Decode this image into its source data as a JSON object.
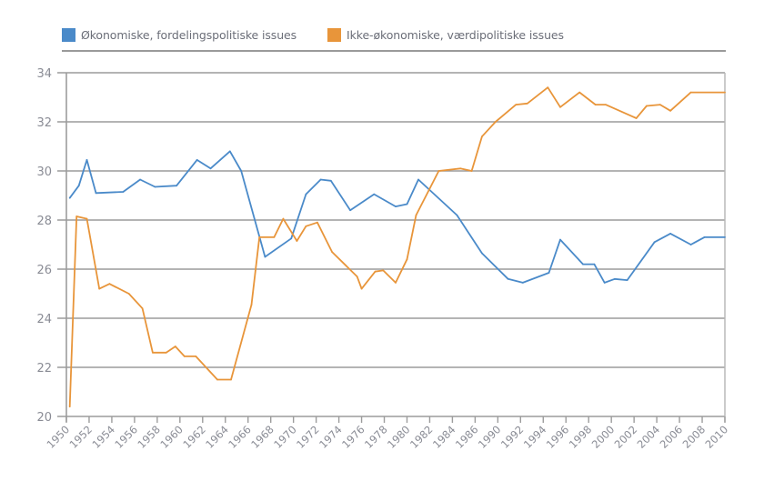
{
  "chart_data": {
    "type": "line",
    "title": "",
    "xlabel": "",
    "ylabel": "",
    "ylim": [
      20,
      34
    ],
    "yticks": [
      "20",
      "22",
      "24",
      "26",
      "28",
      "30",
      "32",
      "34"
    ],
    "ytick_values": [
      20,
      22,
      24,
      26,
      28,
      30,
      32,
      34
    ],
    "xtick_labels": [
      "1950",
      "1952",
      "1954",
      "1956",
      "1958",
      "1960",
      "1962",
      "1964",
      "1966",
      "1968",
      "1970",
      "1972",
      "1974",
      "1976",
      "1978",
      "1980",
      "1982",
      "1984",
      "1986",
      "1990",
      "1992",
      "1994",
      "1996",
      "1998",
      "2000",
      "2002",
      "2004",
      "2006",
      "2008",
      "2010"
    ],
    "grid": true,
    "legend_position": "top",
    "series": [
      {
        "name": "Økonomiske, fordelingspolitiske issues",
        "color": "#4a8ac9",
        "points": [
          [
            1950.3,
            28.9
          ],
          [
            1951.1,
            29.4
          ],
          [
            1951.8,
            30.45
          ],
          [
            1952.6,
            29.1
          ],
          [
            1955.0,
            29.15
          ],
          [
            1956.5,
            29.65
          ],
          [
            1957.8,
            29.35
          ],
          [
            1959.7,
            29.4
          ],
          [
            1961.5,
            30.45
          ],
          [
            1962.7,
            30.1
          ],
          [
            1964.4,
            30.8
          ],
          [
            1965.4,
            30.0
          ],
          [
            1967.5,
            26.5
          ],
          [
            1969.8,
            27.25
          ],
          [
            1971.1,
            29.05
          ],
          [
            1972.4,
            29.65
          ],
          [
            1973.3,
            29.6
          ],
          [
            1975.0,
            28.4
          ],
          [
            1977.1,
            29.05
          ],
          [
            1979.0,
            28.55
          ],
          [
            1980.0,
            28.65
          ],
          [
            1981.0,
            29.65
          ],
          [
            1984.4,
            28.2
          ],
          [
            1987.2,
            26.65
          ],
          [
            1990.9,
            25.6
          ],
          [
            1992.2,
            25.45
          ],
          [
            1994.5,
            25.85
          ],
          [
            1995.5,
            27.2
          ],
          [
            1997.5,
            26.2
          ],
          [
            1998.5,
            26.2
          ],
          [
            1999.4,
            25.45
          ],
          [
            2000.3,
            25.6
          ],
          [
            2001.4,
            25.55
          ],
          [
            2003.8,
            27.1
          ],
          [
            2005.2,
            27.45
          ],
          [
            2007.0,
            27.0
          ],
          [
            2008.2,
            27.3
          ],
          [
            2010.0,
            27.3
          ]
        ]
      },
      {
        "name": "Ikke-økonomiske, værdipolitiske issues",
        "color": "#e8953a",
        "points": [
          [
            1950.3,
            20.4
          ],
          [
            1950.9,
            28.15
          ],
          [
            1951.8,
            28.05
          ],
          [
            1952.9,
            25.2
          ],
          [
            1953.8,
            25.4
          ],
          [
            1955.5,
            25.0
          ],
          [
            1956.7,
            24.4
          ],
          [
            1957.6,
            22.6
          ],
          [
            1958.8,
            22.6
          ],
          [
            1959.6,
            22.85
          ],
          [
            1960.4,
            22.45
          ],
          [
            1961.4,
            22.45
          ],
          [
            1963.3,
            21.5
          ],
          [
            1964.5,
            21.5
          ],
          [
            1966.3,
            24.55
          ],
          [
            1967.0,
            27.3
          ],
          [
            1968.3,
            27.3
          ],
          [
            1969.1,
            28.05
          ],
          [
            1970.3,
            27.15
          ],
          [
            1971.1,
            27.75
          ],
          [
            1972.1,
            27.9
          ],
          [
            1973.4,
            26.7
          ],
          [
            1975.6,
            25.7
          ],
          [
            1976.0,
            25.2
          ],
          [
            1977.2,
            25.9
          ],
          [
            1977.9,
            25.95
          ],
          [
            1979.0,
            25.45
          ],
          [
            1980.0,
            26.4
          ],
          [
            1980.8,
            28.2
          ],
          [
            1982.8,
            30.0
          ],
          [
            1984.7,
            30.1
          ],
          [
            1985.7,
            30.0
          ],
          [
            1987.2,
            31.4
          ],
          [
            1989.6,
            32.0
          ],
          [
            1991.6,
            32.7
          ],
          [
            1992.6,
            32.75
          ],
          [
            1994.4,
            33.4
          ],
          [
            1995.5,
            32.6
          ],
          [
            1997.2,
            33.2
          ],
          [
            1998.6,
            32.7
          ],
          [
            1999.5,
            32.7
          ],
          [
            2002.2,
            32.15
          ],
          [
            2003.1,
            32.65
          ],
          [
            2004.3,
            32.7
          ],
          [
            2005.2,
            32.45
          ],
          [
            2007.0,
            33.2
          ],
          [
            2010.0,
            33.2
          ]
        ]
      }
    ]
  },
  "legend": {
    "items": [
      {
        "label": "Økonomiske, fordelingspolitiske issues",
        "color": "#4a8ac9"
      },
      {
        "label": "Ikke-økonomiske, værdipolitiske issues",
        "color": "#e8953a"
      }
    ]
  },
  "colors": {
    "grid": "#9c9c9c",
    "axis": "#9c9c9c",
    "tick_text": "#8a8c95"
  }
}
